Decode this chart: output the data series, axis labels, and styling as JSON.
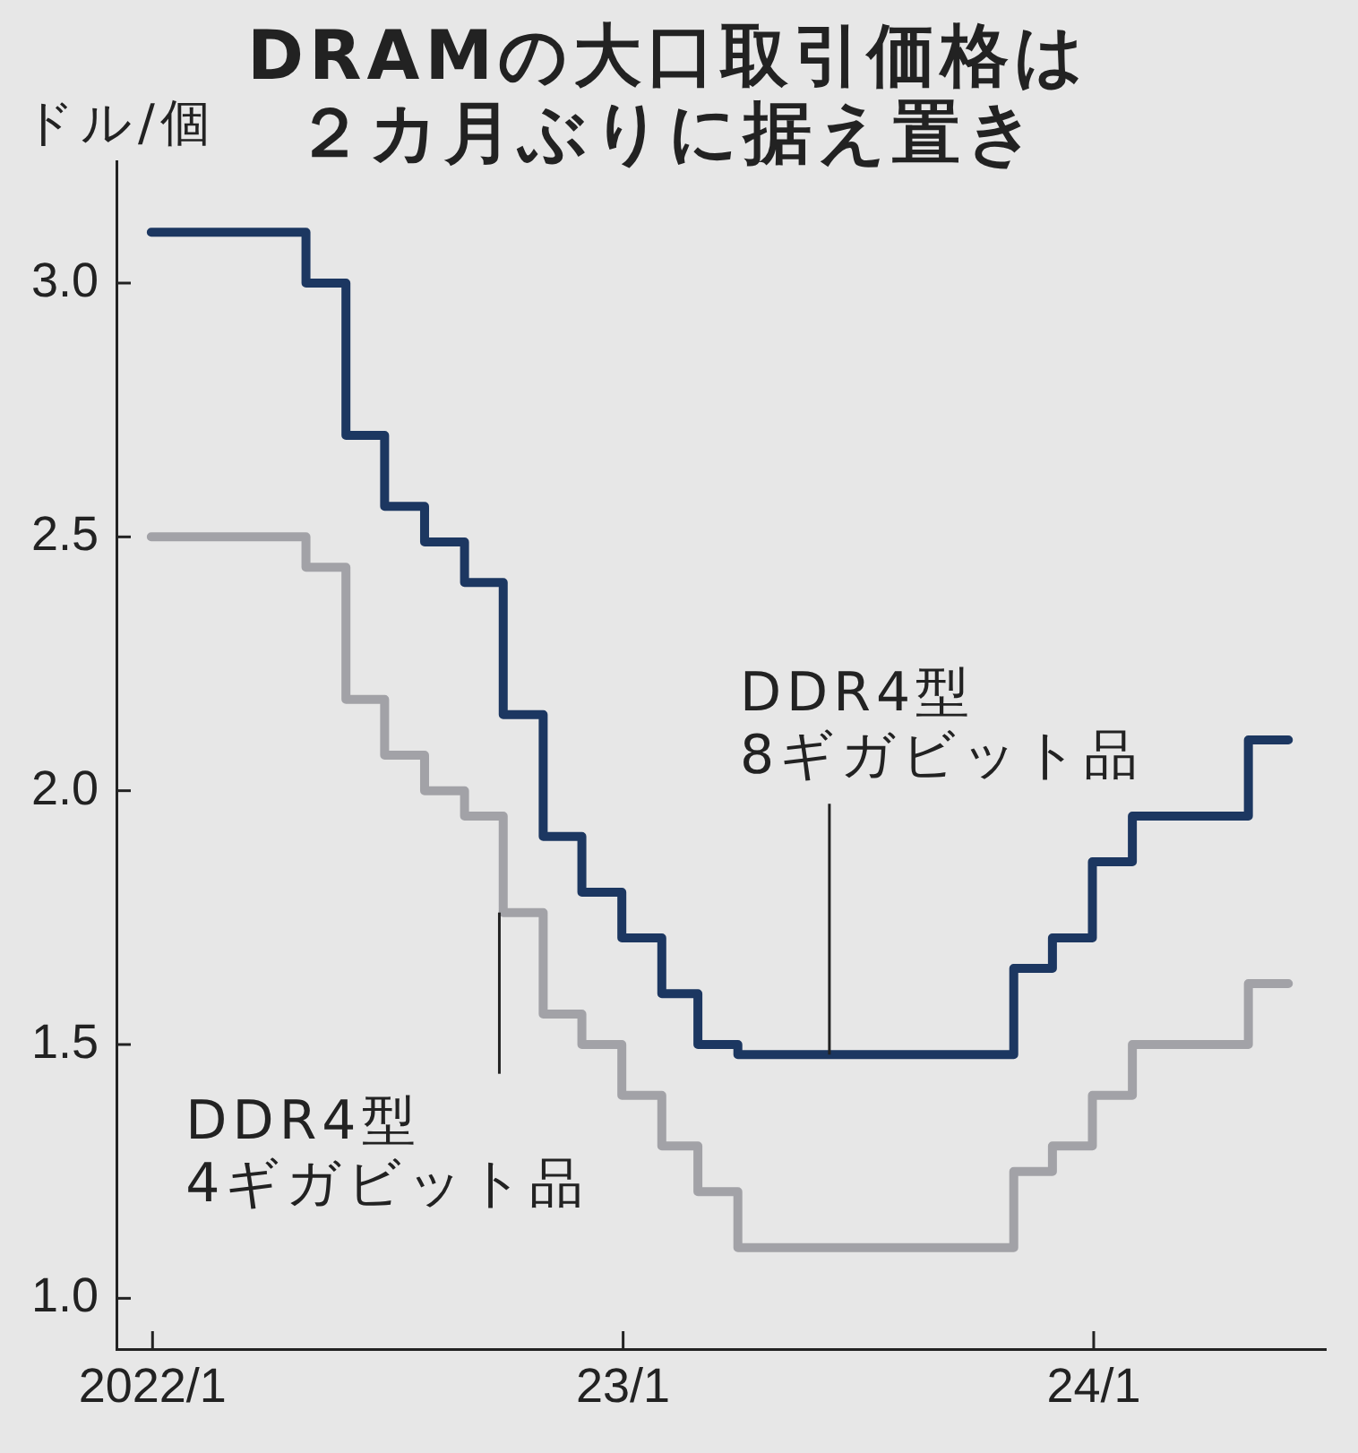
{
  "chart_data": {
    "type": "step",
    "title": "DRAMの大口取引価格は２カ月ぶりに据え置き",
    "ylabel": "ドル/個",
    "x": [
      "2021-12-31",
      "2022-01-31",
      "2022-02-28",
      "2022-03-31",
      "2022-04-30",
      "2022-05-31",
      "2022-06-30",
      "2022-07-31",
      "2022-08-31",
      "2022-09-30",
      "2022-10-31",
      "2022-11-30",
      "2022-12-31",
      "2023-01-31",
      "2023-02-28",
      "2023-03-31",
      "2023-04-30",
      "2023-05-31",
      "2023-06-30",
      "2023-07-31",
      "2023-08-31",
      "2023-09-30",
      "2023-10-31",
      "2023-11-30",
      "2023-12-31",
      "2024-01-31",
      "2024-02-29",
      "2024-03-31",
      "2024-04-30",
      "2024-05-31"
    ],
    "series": [
      {
        "color": "#1c3761",
        "values": [
          3.1,
          3.1,
          3.1,
          3.1,
          3.0,
          2.7,
          2.56,
          2.49,
          2.41,
          2.15,
          1.91,
          1.8,
          1.71,
          1.6,
          1.5,
          1.48,
          1.48,
          1.48,
          1.48,
          1.48,
          1.48,
          1.48,
          1.65,
          1.71,
          1.86,
          1.95,
          1.95,
          1.95,
          2.1,
          2.1
        ]
      },
      {
        "color": "#a2a2a7",
        "values": [
          2.5,
          2.5,
          2.5,
          2.5,
          2.44,
          2.18,
          2.07,
          2.0,
          1.95,
          1.76,
          1.56,
          1.5,
          1.4,
          1.3,
          1.21,
          1.1,
          1.1,
          1.1,
          1.1,
          1.1,
          1.1,
          1.1,
          1.25,
          1.3,
          1.4,
          1.5,
          1.5,
          1.5,
          1.62,
          1.62
        ]
      }
    ],
    "xlim": [
      "2021-12-04",
      "2024-06-29"
    ],
    "xticks": [
      {
        "value": "2022-01",
        "label": "2022/1"
      },
      {
        "value": "2023-01",
        "label": "23/1"
      },
      {
        "value": "2024-01",
        "label": "24/1"
      }
    ],
    "ylim": [
      0.9,
      3.24
    ],
    "yticks": [
      {
        "value": 1,
        "label": "1.0"
      },
      1.5,
      {
        "value": 2,
        "label": "2.0"
      },
      2.5,
      {
        "value": 3,
        "label": "3.0"
      }
    ],
    "annotations": [
      {
        "text": "DDR4型\n8ギガビット品",
        "x": "2023-06-10",
        "y": 1.48
      },
      {
        "text": "DDR4型\n4ギガビット品",
        "x": "2022-09-27",
        "y": 1.76
      }
    ],
    "grid": false,
    "legend": false,
    "marker": "none",
    "line_style": "solid"
  }
}
